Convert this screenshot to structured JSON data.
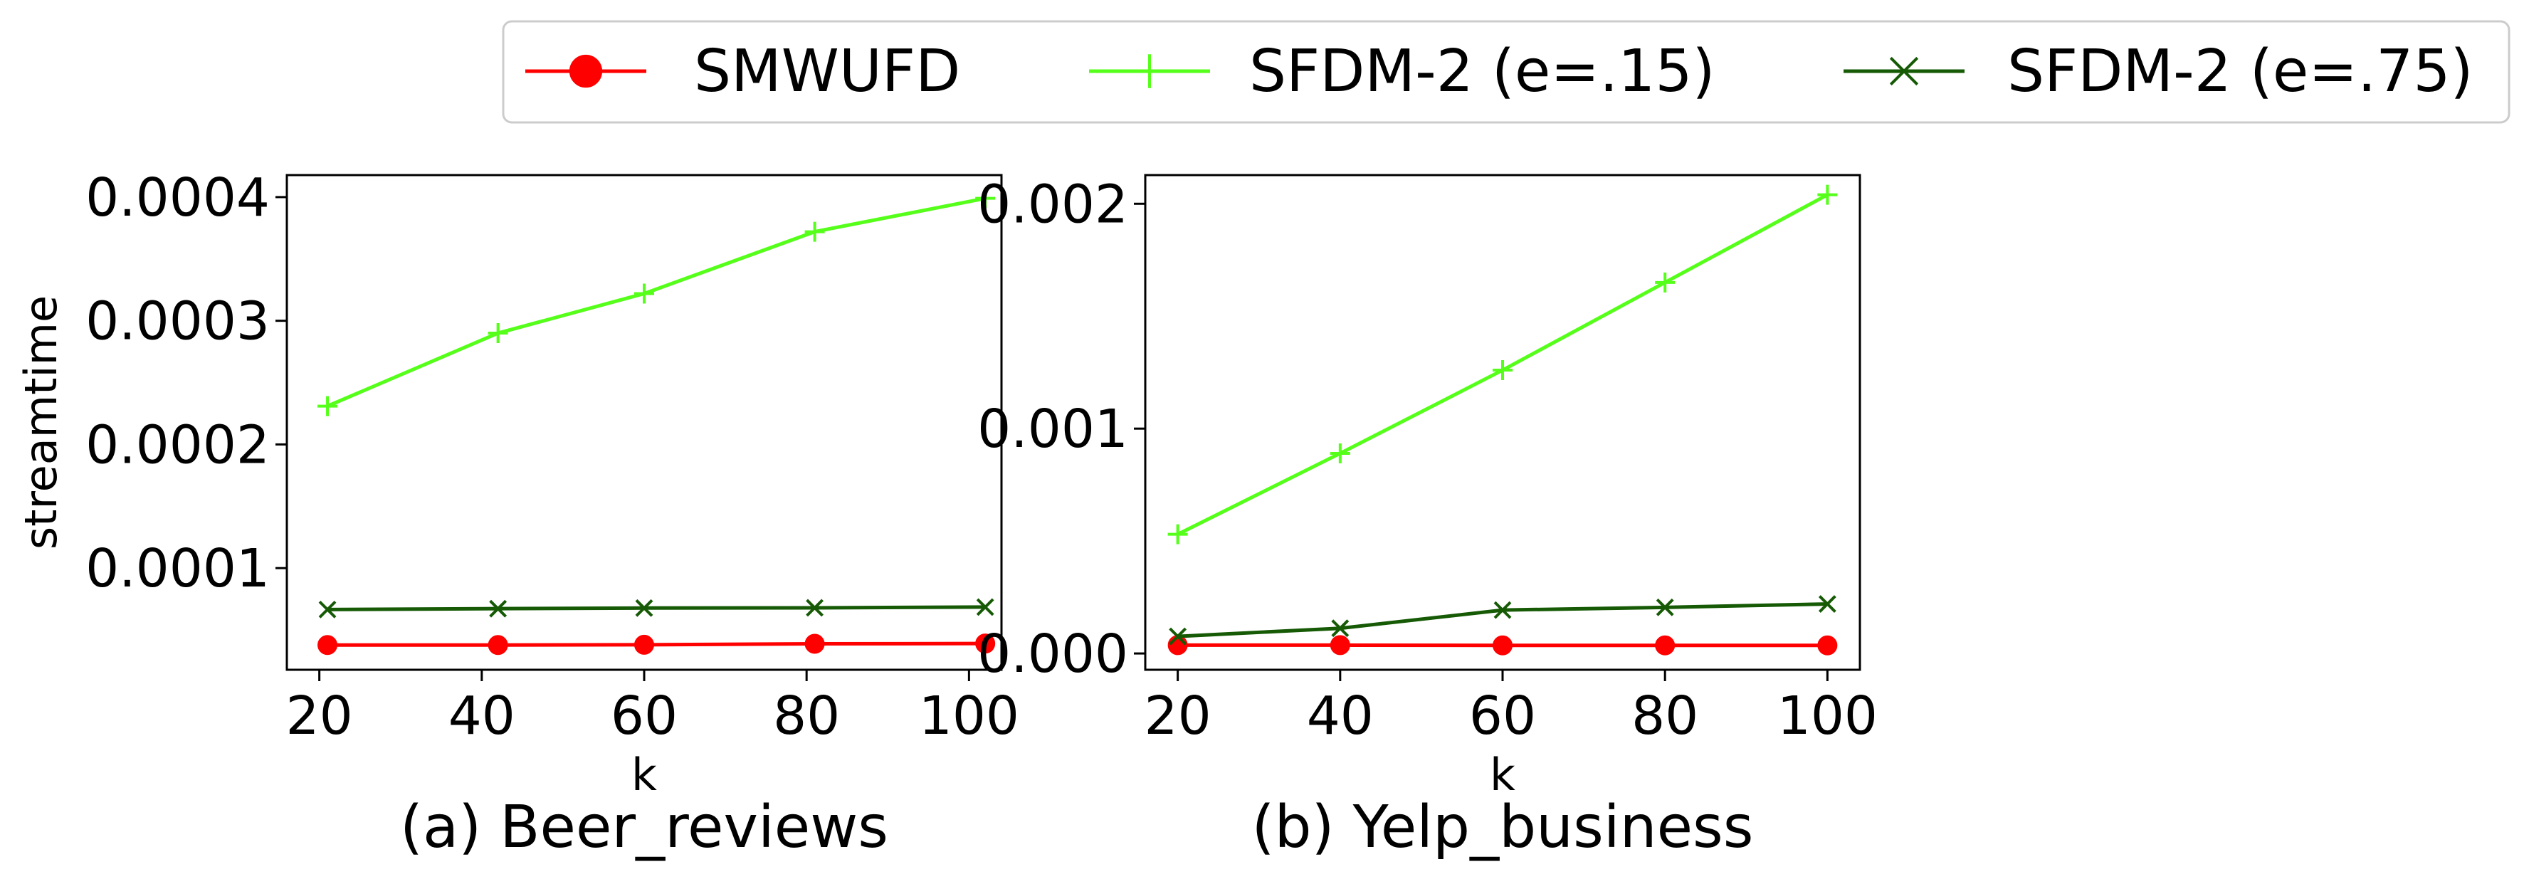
{
  "legend": {
    "placement": "top-center",
    "entries": [
      {
        "label": "SMWUFD",
        "color": "#ff0000",
        "marker": "circle"
      },
      {
        "label": "SFDM-2 (e=.15)",
        "color": "#55ff1a",
        "marker": "plus"
      },
      {
        "label": "SFDM-2 (e=.75)",
        "color": "#165a06",
        "marker": "x"
      }
    ]
  },
  "chart_data": [
    {
      "type": "line",
      "title": "",
      "caption": "(a) Beer_reviews",
      "xlabel": "k",
      "ylabel": "streamtime",
      "xlim": [
        16,
        104
      ],
      "ylim": [
        1.78e-05,
        0.0004178
      ],
      "xticks": [
        20,
        40,
        60,
        80,
        100
      ],
      "xtick_labels": [
        "20",
        "40",
        "60",
        "80",
        "100"
      ],
      "yticks": [
        0.0001,
        0.0002,
        0.0003,
        0.0004
      ],
      "ytick_labels": [
        "0.0001",
        "0.0002",
        "0.0003",
        "0.0004"
      ],
      "grid": false,
      "x": [
        21,
        42,
        60,
        81,
        102
      ],
      "series": [
        {
          "name": "SMWUFD",
          "color": "#ff0000",
          "marker": "circle",
          "values": [
            3.78e-05,
            3.78e-05,
            3.8e-05,
            3.88e-05,
            3.9e-05
          ]
        },
        {
          "name": "SFDM-2 (e=.15)",
          "color": "#55ff1a",
          "marker": "plus",
          "values": [
            0.000231,
            0.00029,
            0.000322,
            0.000372,
            0.000399
          ]
        },
        {
          "name": "SFDM-2 (e=.75)",
          "color": "#165a06",
          "marker": "x",
          "values": [
            6.65e-05,
            6.72e-05,
            6.77e-05,
            6.79e-05,
            6.85e-05
          ]
        }
      ]
    },
    {
      "type": "line",
      "title": "",
      "caption": "(b) Yelp_business",
      "xlabel": "k",
      "ylabel": "",
      "xlim": [
        16,
        104
      ],
      "ylim": [
        -7.25e-05,
        0.0021275
      ],
      "xticks": [
        20,
        40,
        60,
        80,
        100
      ],
      "xtick_labels": [
        "20",
        "40",
        "60",
        "80",
        "100"
      ],
      "yticks": [
        0.0,
        0.001,
        0.002
      ],
      "ytick_labels": [
        "0.000",
        "0.001",
        "0.002"
      ],
      "grid": false,
      "x": [
        20,
        40,
        60,
        80,
        100
      ],
      "series": [
        {
          "name": "SMWUFD",
          "color": "#ff0000",
          "marker": "circle",
          "values": [
            3.7e-05,
            3.7e-05,
            3.6e-05,
            3.6e-05,
            3.6e-05
          ]
        },
        {
          "name": "SFDM-2 (e=.15)",
          "color": "#55ff1a",
          "marker": "plus",
          "values": [
            0.00053,
            0.00089,
            0.00126,
            0.00165,
            0.00204
          ]
        },
        {
          "name": "SFDM-2 (e=.75)",
          "color": "#165a06",
          "marker": "x",
          "values": [
            7.6e-05,
            0.000112,
            0.000193,
            0.000205,
            0.00022
          ]
        }
      ]
    }
  ]
}
